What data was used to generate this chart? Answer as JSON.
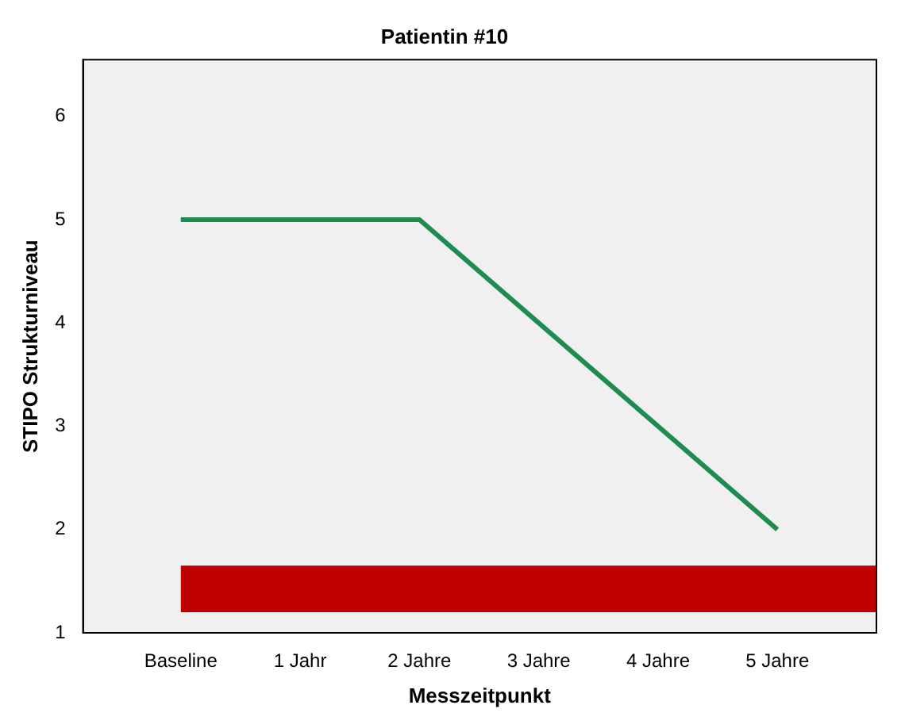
{
  "chart_data": {
    "type": "line",
    "title": "Patientin #10",
    "xlabel": "Messzeitpunkt",
    "ylabel": "STIPO Strukturniveau",
    "categories": [
      "Baseline",
      "1 Jahr",
      "2 Jahre",
      "3 Jahre",
      "4 Jahre",
      "5 Jahre"
    ],
    "series": [
      {
        "color": "#1e8c4e",
        "values": [
          5,
          null,
          5,
          null,
          null,
          2
        ]
      }
    ],
    "ylim": [
      1,
      6.55
    ],
    "yticks": [
      1,
      2,
      3,
      4,
      5,
      6
    ],
    "grid": false,
    "legend": false,
    "marker": "none",
    "line_style": "solid",
    "bands": [
      {
        "axis": "y",
        "from": 1.2,
        "to": 1.65,
        "color": "#c00000"
      }
    ]
  }
}
